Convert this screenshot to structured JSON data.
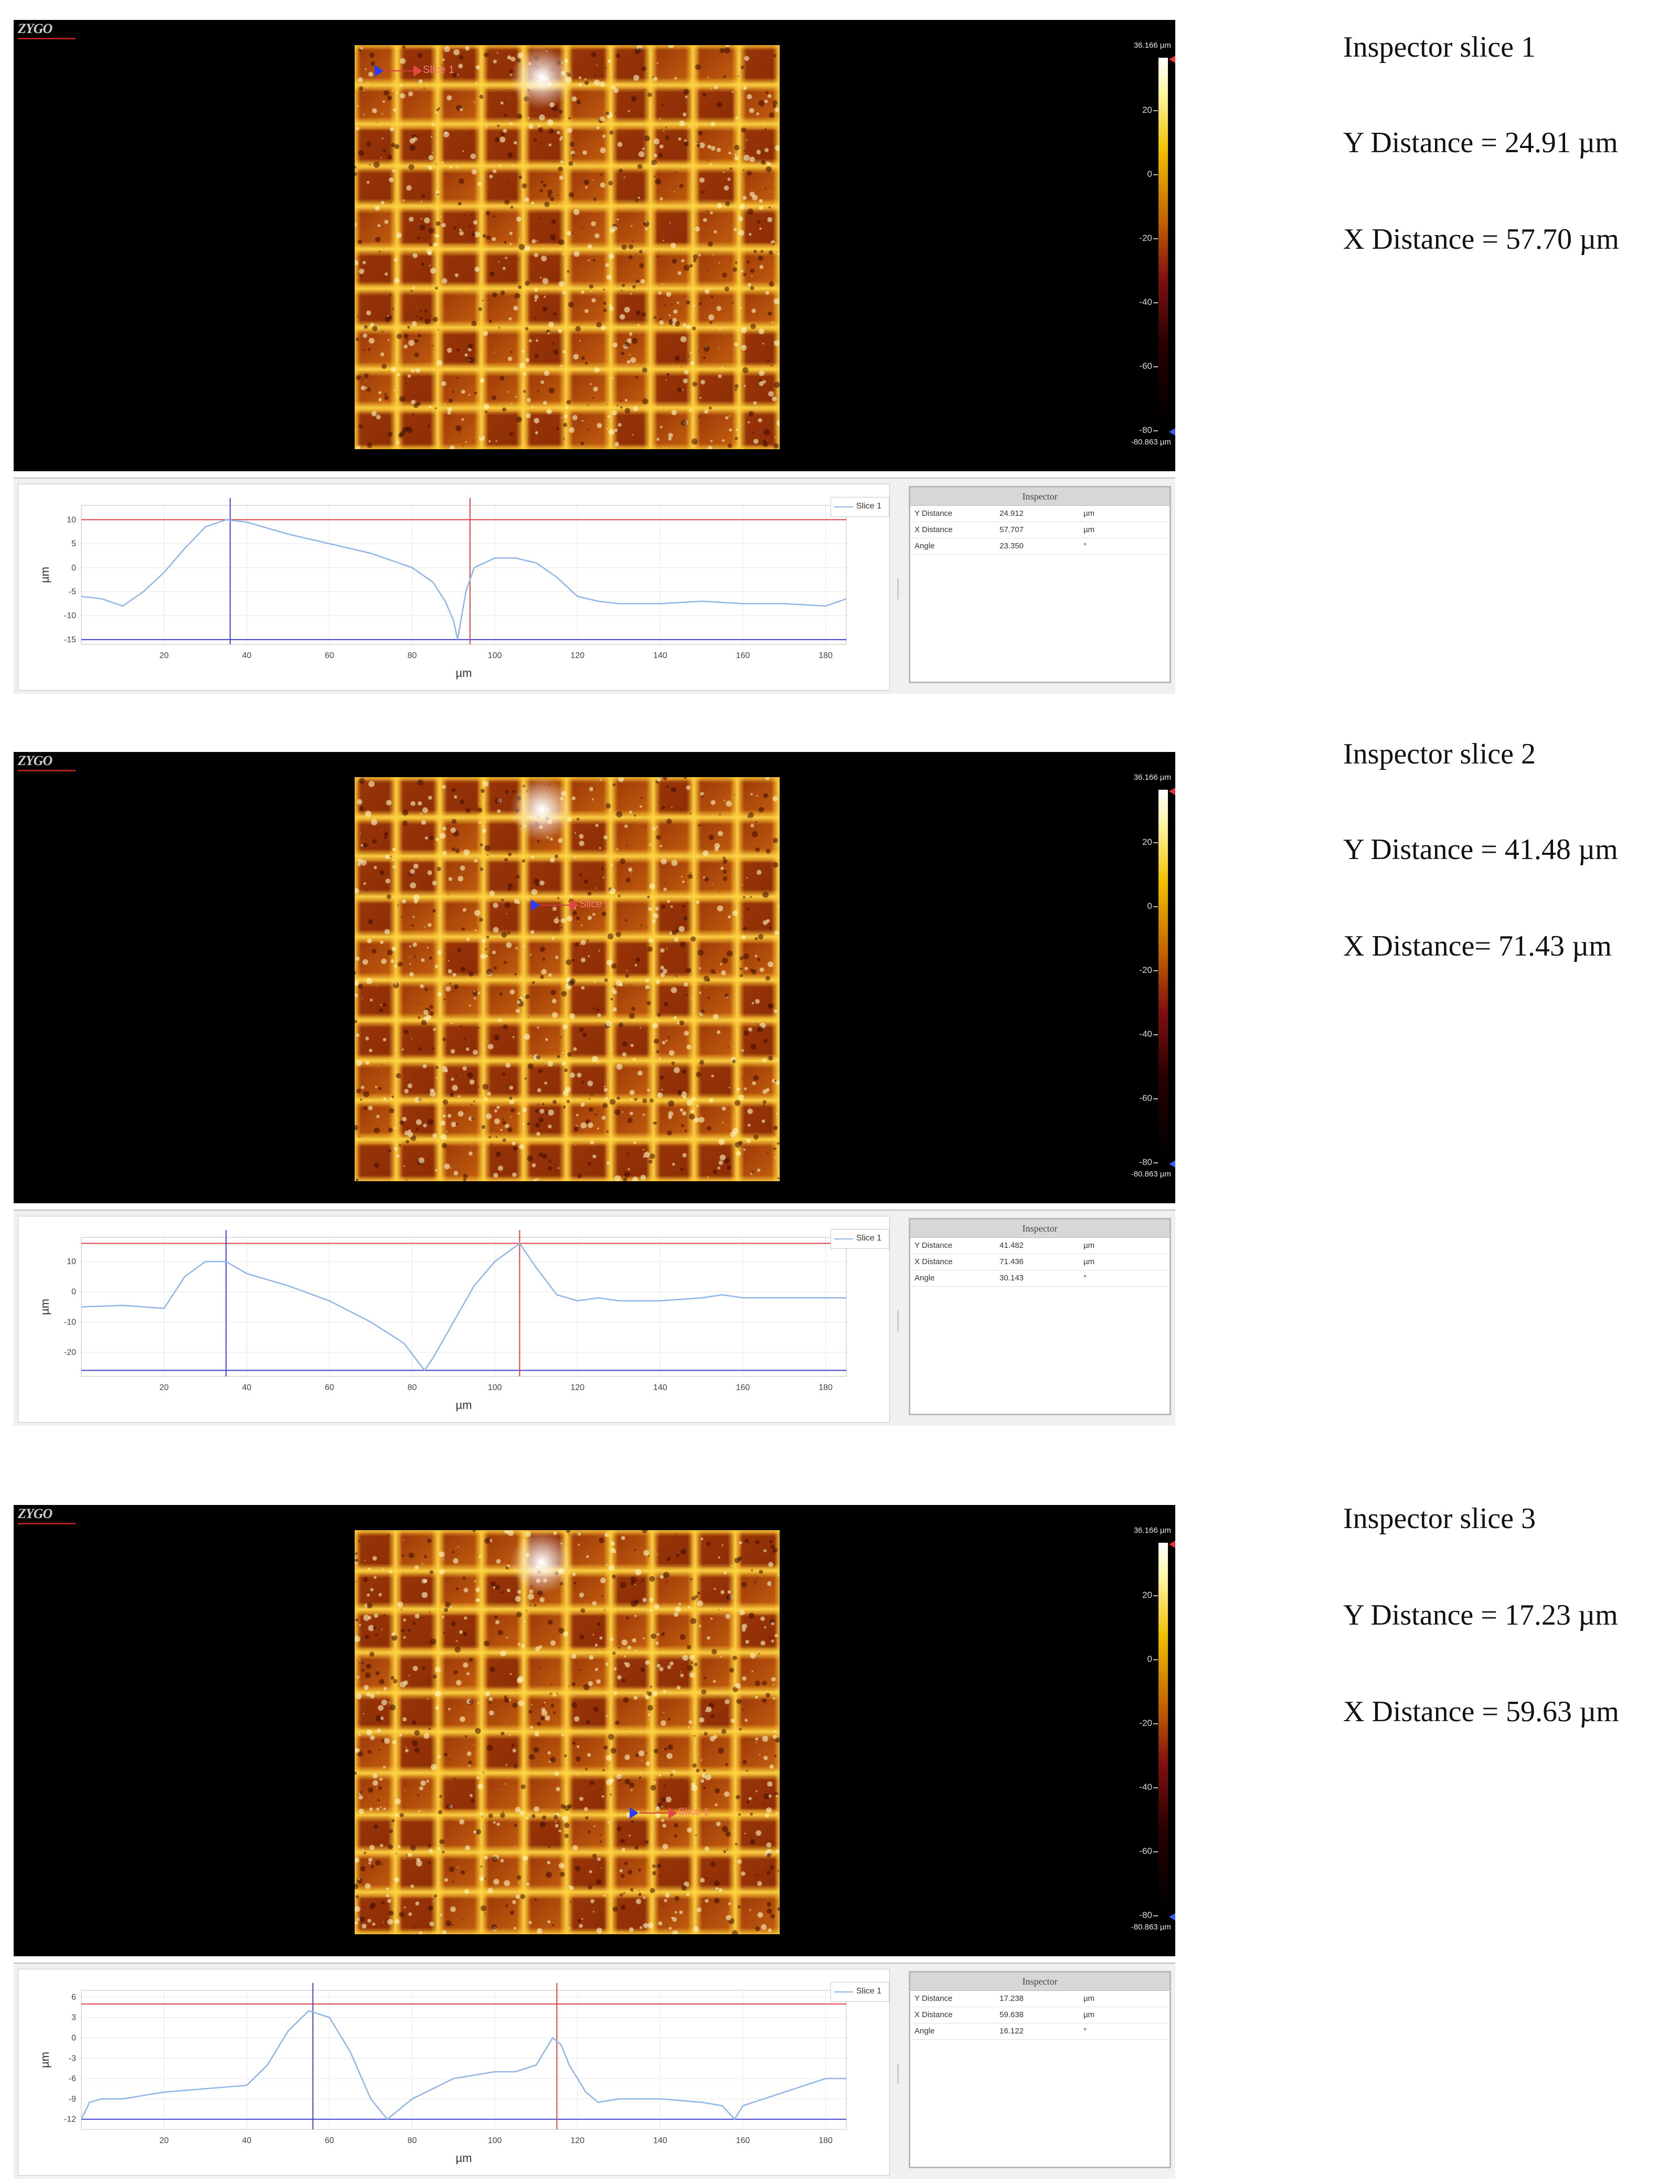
{
  "common": {
    "logo": "ZYGO",
    "scale_max": "36.166 µm",
    "scale_min": "-80.863 µm",
    "colorbar_ticks": [
      "20",
      "0",
      "-20",
      "-40",
      "-60",
      "-80"
    ],
    "axis_unit": "µm",
    "legend": "Slice 1",
    "inspector_title": "Inspector",
    "row_labels": [
      "Y Distance",
      "X Distance",
      "Angle"
    ],
    "units": [
      "µm",
      "µm",
      "°"
    ],
    "x_ticks": [
      "20",
      "40",
      "60",
      "80",
      "100",
      "120",
      "140",
      "160",
      "180"
    ],
    "colors": {
      "profile": "#8fb4e6",
      "red_cursor": "#e04040",
      "blue_cursor": "#4040d0",
      "surface_hot": "#ffd24a",
      "surface_dark": "#a03a0a"
    }
  },
  "panels": [
    {
      "slice_label": "Slice 1",
      "inspector_values": [
        "24.912",
        "57.707",
        "23.350"
      ],
      "notes": [
        "Inspector slice 1",
        "Y Distance = 24.91 µm",
        "X Distance = 57.70 µm"
      ],
      "chart_data": {
        "type": "line",
        "xlabel": "µm",
        "ylabel": "µm",
        "xlim": [
          0,
          185
        ],
        "ylim": [
          -16,
          13
        ],
        "yticks": [
          "10",
          "5",
          "0",
          "-5",
          "-10",
          "-15"
        ],
        "series": [
          {
            "name": "Slice 1",
            "x": [
              0,
              5,
              10,
              15,
              20,
              25,
              30,
              35,
              40,
              50,
              60,
              70,
              80,
              85,
              88,
              90,
              91,
              93,
              95,
              100,
              105,
              110,
              115,
              120,
              125,
              130,
              140,
              150,
              160,
              170,
              180,
              185
            ],
            "y": [
              -6,
              -6.5,
              -8,
              -5,
              -1,
              4,
              8.5,
              10,
              9.5,
              7,
              5,
              3,
              0,
              -3,
              -7,
              -11,
              -15,
              -5,
              0,
              2,
              2,
              1,
              -2,
              -6,
              -7,
              -7.5,
              -7.5,
              -7,
              -7.5,
              -7.5,
              -8,
              -6.5
            ]
          }
        ],
        "cursors": {
          "blue_x": 36,
          "red_x": 94,
          "red_y": 10,
          "blue_y": -15
        }
      }
    },
    {
      "slice_label": "Slice 1",
      "inspector_values": [
        "41.482",
        "71.436",
        "30.143"
      ],
      "notes": [
        "Inspector slice 2",
        "Y Distance = 41.48 µm",
        "X Distance= 71.43 µm"
      ],
      "chart_data": {
        "type": "line",
        "xlabel": "µm",
        "ylabel": "µm",
        "xlim": [
          0,
          185
        ],
        "ylim": [
          -28,
          18
        ],
        "yticks": [
          "10",
          "0",
          "-10",
          "-20"
        ],
        "series": [
          {
            "name": "Slice 1",
            "x": [
              0,
              10,
              20,
              25,
              30,
              35,
              40,
              50,
              60,
              70,
              78,
              83,
              85,
              90,
              95,
              100,
              106,
              110,
              115,
              120,
              125,
              130,
              140,
              150,
              155,
              160,
              170,
              180,
              185
            ],
            "y": [
              -5,
              -4.5,
              -5.5,
              5,
              10,
              10,
              6,
              2,
              -3,
              -10,
              -17,
              -26,
              -22,
              -10,
              2,
              10,
              16,
              8,
              -1,
              -3,
              -2,
              -3,
              -3,
              -2,
              -1,
              -2,
              -2,
              -2,
              -2
            ]
          }
        ],
        "cursors": {
          "blue_x": 35,
          "red_x": 106,
          "red_y": 16,
          "blue_y": -26
        }
      }
    },
    {
      "slice_label": "Slice 1",
      "inspector_values": [
        "17.238",
        "59.638",
        "16.122"
      ],
      "notes": [
        "Inspector slice 3",
        "Y Distance = 17.23 µm",
        "X Distance = 59.63 µm"
      ],
      "chart_data": {
        "type": "line",
        "xlabel": "µm",
        "ylabel": "µm",
        "xlim": [
          0,
          185
        ],
        "ylim": [
          -13.5,
          7
        ],
        "yticks": [
          "6",
          "3",
          "0",
          "-3",
          "-6",
          "-9",
          "-12"
        ],
        "series": [
          {
            "name": "Slice 1",
            "x": [
              0,
              2,
              5,
              10,
              20,
              30,
              40,
              45,
              50,
              55,
              60,
              65,
              70,
              74,
              80,
              90,
              100,
              105,
              110,
              114,
              116,
              118,
              122,
              125,
              130,
              140,
              150,
              155,
              158,
              160,
              165,
              170,
              175,
              180,
              185
            ],
            "y": [
              -12,
              -9.5,
              -9,
              -9,
              -8,
              -7.5,
              -7,
              -4,
              1,
              4,
              3,
              -2,
              -9,
              -12,
              -9,
              -6,
              -5,
              -5,
              -4,
              0,
              -1,
              -4,
              -8,
              -9.5,
              -9,
              -9,
              -9.5,
              -10,
              -12,
              -10,
              -9,
              -8,
              -7,
              -6,
              -6
            ]
          }
        ],
        "cursors": {
          "blue_x": 56,
          "red_x": 115,
          "red_y": 5,
          "blue_y": -12
        }
      }
    }
  ]
}
